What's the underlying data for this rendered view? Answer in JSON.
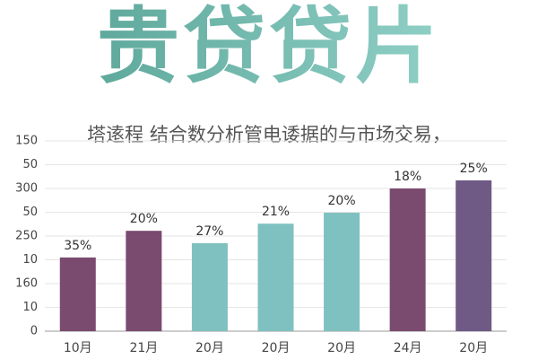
{
  "chart_data": {
    "type": "bar",
    "title": "贵贷贷片",
    "subtitle": "塔逺程  结合数分析管电诿据的与市场交易，",
    "categories": [
      "10月",
      "21月",
      "20月",
      "20月",
      "20月",
      "24月",
      "20月"
    ],
    "values": [
      155,
      211,
      185,
      226,
      249,
      300,
      317
    ],
    "bar_labels": [
      "35%",
      "20%",
      "27%",
      "21%",
      "20%",
      "18%",
      "25%"
    ],
    "colors": [
      "#7b4a6f",
      "#7b4a6f",
      "#7fc1c0",
      "#7fc1c0",
      "#7fc1c0",
      "#7b4a6f",
      "#6f5a85"
    ],
    "ylim": [
      0,
      400
    ],
    "yticks": [
      0,
      {
        "value": 50,
        "label": "10"
      },
      {
        "value": 100,
        "label": "160"
      },
      {
        "value": 150,
        "label": "10"
      },
      {
        "value": 200,
        "label": "250"
      },
      {
        "value": 250,
        "label": "50"
      },
      300,
      {
        "value": 350,
        "label": "50"
      },
      {
        "value": 400,
        "label": "150"
      }
    ],
    "grid": true
  }
}
